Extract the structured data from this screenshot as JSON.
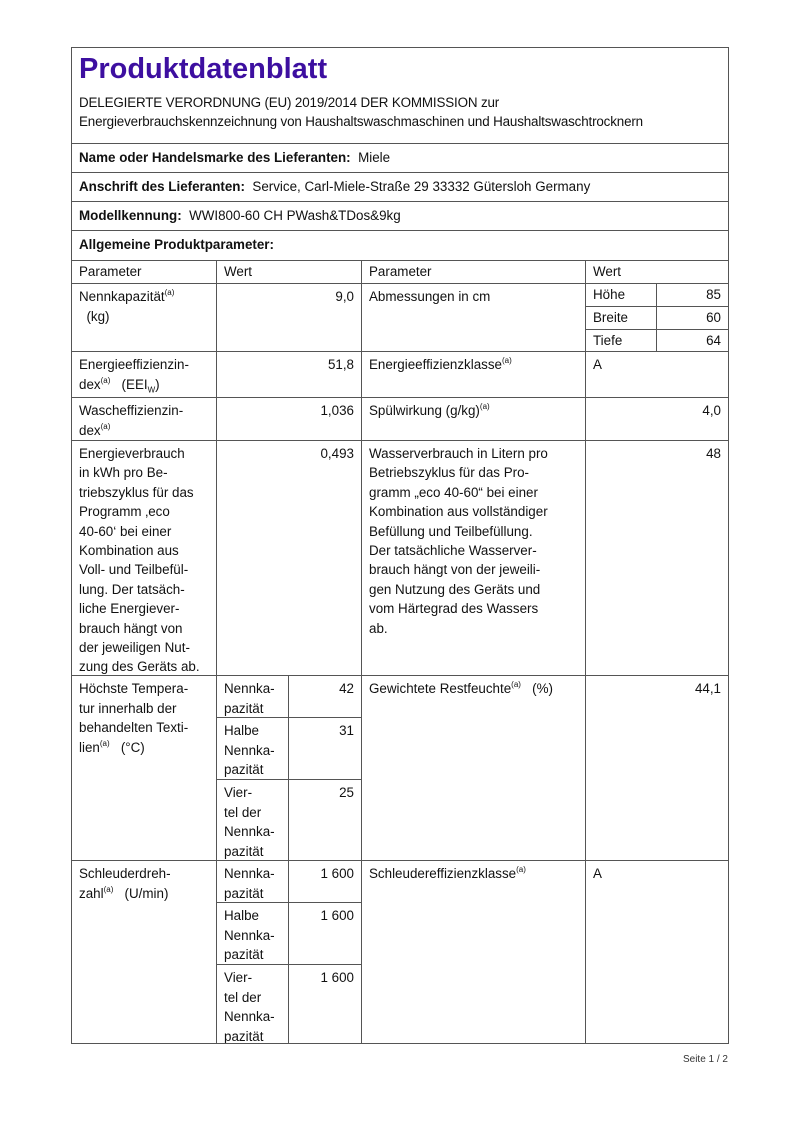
{
  "title": "Produktdatenblatt",
  "regulation_line1": "DELEGIERTE VERORDNUNG (EU) 2019/2014 DER KOMMISSION zur",
  "regulation_line2": "Energieverbrauchskennzeichnung von Haushaltswaschmaschinen und Haushaltswaschtrocknern",
  "supplier": {
    "label": "Name oder Handelsmarke des Lieferanten:",
    "value": "Miele"
  },
  "address": {
    "label": "Anschrift des Lieferanten:",
    "value": "Service, Carl-Miele-Straße 29 33332 Gütersloh Germany"
  },
  "model": {
    "label": "Modellkennung:",
    "value": "WWI800-60 CH PWash&TDos&9kg"
  },
  "general_heading": "Allgemeine Produktparameter:",
  "headers": {
    "param": "Parameter",
    "value": "Wert"
  },
  "sup": "(a)",
  "rows": {
    "capacity": {
      "label": "Nennkapazität",
      "unit": "(kg)",
      "value": "9,0"
    },
    "dimensions": {
      "label": "Abmessungen in cm",
      "items": [
        {
          "name": "Höhe",
          "value": "85"
        },
        {
          "name": "Breite",
          "value": "60"
        },
        {
          "name": "Tiefe",
          "value": "64"
        }
      ]
    },
    "eei": {
      "label": "Energieeffizienzin-\ndex",
      "unit": "(EEI",
      "unit_sub": "W",
      "unit_end": ")",
      "value": "51,8"
    },
    "eclass": {
      "label": "Energieeffizienzklasse",
      "value": "A"
    },
    "wash": {
      "label": "Wascheffizienzin-\ndex",
      "value": "1,036"
    },
    "rinse": {
      "label": "Spülwirkung (g/kg)",
      "value": "4,0"
    },
    "energy": {
      "label": "Energieverbrauch\nin kWh pro Be-\ntriebszyklus für das\nProgramm ‚eco\n40-60‘ bei einer\nKombination aus\nVoll- und Teilbefül-\nlung. Der tatsäch-\nliche Energiever-\nbrauch hängt von\nder jeweiligen Nut-\nzung des Geräts ab.",
      "value": "0,493"
    },
    "water": {
      "label": "Wasserverbrauch in Litern pro\nBetriebszyklus für das Pro-\ngramm „eco 40-60“ bei einer\nKombination aus vollständiger\nBefüllung und Teilbefüllung.\nDer tatsächliche Wasserver-\nbrauch hängt von der jeweili-\ngen Nutzung des Geräts und\nvom Härtegrad des Wassers\nab.",
      "value": "48"
    },
    "temp": {
      "label": "Höchste Tempera-\ntur innerhalb der\nbehandelten Texti-\nlien",
      "unit": "(°C)",
      "sub": [
        {
          "name": "Nennka-\npazität",
          "value": "42"
        },
        {
          "name": "Halbe\nNennka-\npazität",
          "value": "31"
        },
        {
          "name": "Vier-\ntel der\nNennka-\npazität",
          "value": "25"
        }
      ]
    },
    "moisture": {
      "label": "Gewichtete Restfeuchte",
      "unit": "(%)",
      "value": "44,1"
    },
    "spin": {
      "label": "Schleuderdreh-\nzahl",
      "unit": "(U/min)",
      "sub": [
        {
          "name": "Nennka-\npazität",
          "value": "1 600"
        },
        {
          "name": "Halbe\nNennka-\npazität",
          "value": "1 600"
        },
        {
          "name": "Vier-\ntel der\nNennka-\npazität",
          "value": "1 600"
        }
      ]
    },
    "spinclass": {
      "label": "Schleudereffizienzklasse",
      "value": "A"
    }
  },
  "footer": "Seite 1 / 2"
}
